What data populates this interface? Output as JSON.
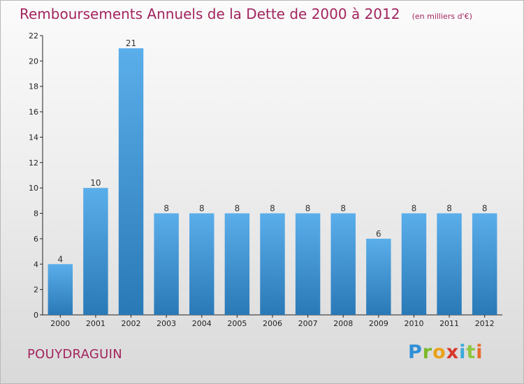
{
  "chart_data": {
    "type": "bar",
    "title": "Remboursements Annuels de la Dette de 2000 à 2012",
    "subtitle": "(en milliers d'€)",
    "categories": [
      "2000",
      "2001",
      "2002",
      "2003",
      "2004",
      "2005",
      "2006",
      "2007",
      "2008",
      "2009",
      "2010",
      "2011",
      "2012"
    ],
    "values": [
      4,
      10,
      21,
      8,
      8,
      8,
      8,
      8,
      8,
      6,
      8,
      8,
      8
    ],
    "ylim": [
      0,
      22
    ],
    "yticks": [
      0,
      2,
      4,
      6,
      8,
      10,
      12,
      14,
      16,
      18,
      20,
      22
    ],
    "grid": false,
    "legend": "none",
    "bar_color_top": "#5aaeea",
    "bar_color_bottom": "#2a79b7"
  },
  "footer": {
    "commune": "POUYDRAGUIN",
    "logo": {
      "p": "P",
      "r": "r",
      "o": "o",
      "x": "x",
      "i1": "i",
      "t": "t",
      "i2": "i"
    }
  },
  "colors": {
    "title": "#a2245e",
    "axis": "#222222"
  }
}
